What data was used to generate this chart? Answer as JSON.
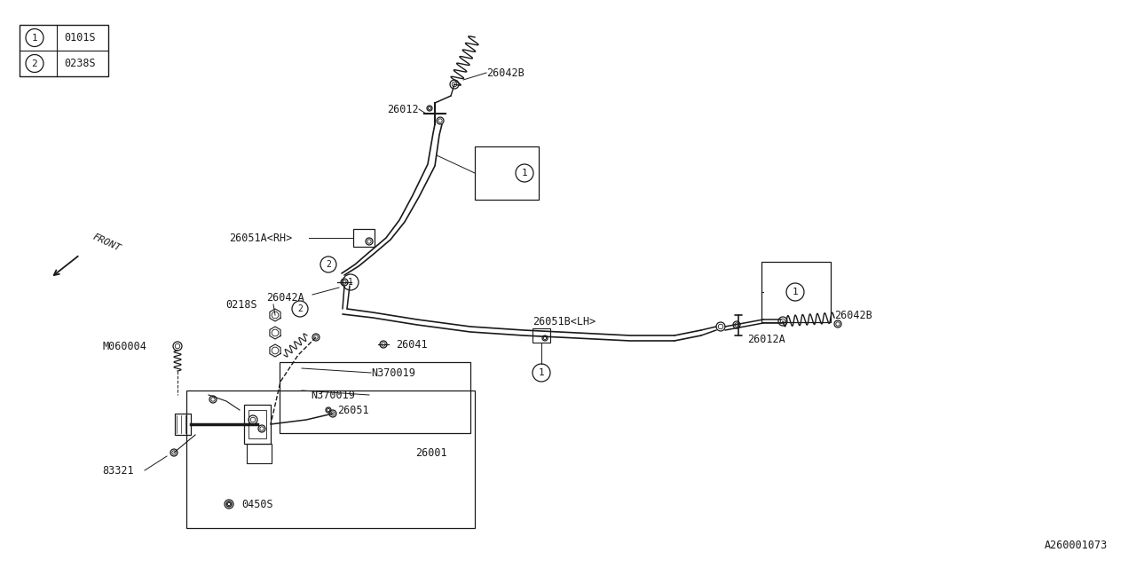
{
  "bg_color": "#ffffff",
  "line_color": "#1a1a1a",
  "text_color": "#1a1a1a",
  "font_size": 8.5,
  "legend_items": [
    {
      "num": "1",
      "code": "0101S"
    },
    {
      "num": "2",
      "code": "0238S"
    }
  ],
  "diagram_id": "A260001073",
  "figsize": [
    12.8,
    6.4
  ],
  "dpi": 100
}
